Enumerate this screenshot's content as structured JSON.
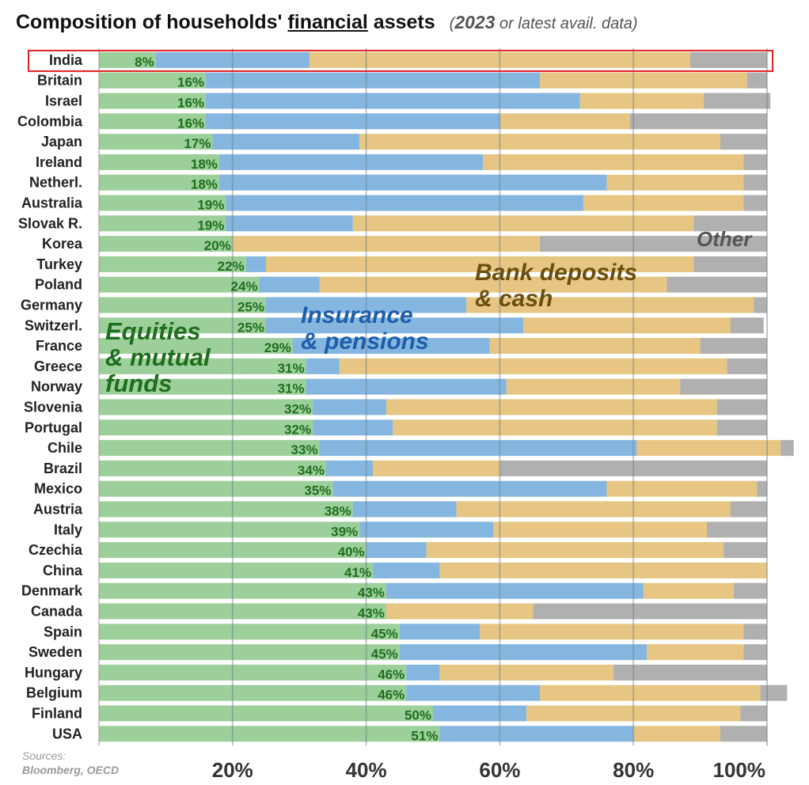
{
  "title": {
    "main_pre": "Composition of households' ",
    "main_underlined": "financial",
    "main_post": " assets",
    "note_open": "(",
    "note_year": "2023",
    "note_rest": " or latest avail. data)"
  },
  "sources": {
    "line1": "Sources:",
    "line2": "Bloomberg, OECD"
  },
  "category_labels": {
    "equities_line1": "Equities",
    "equities_line2": "& mutual",
    "equities_line3": "funds",
    "insurance_line1": "Insurance",
    "insurance_line2": "& pensions",
    "bank_line1": "Bank deposits",
    "bank_line2": "& cash",
    "other": "Other"
  },
  "chart_data": {
    "type": "bar",
    "orientation": "horizontal",
    "stacked": true,
    "xlim": [
      0,
      100
    ],
    "xticks": [
      "20%",
      "40%",
      "60%",
      "80%",
      "100%"
    ],
    "xtick_values": [
      20,
      40,
      60,
      80,
      100
    ],
    "highlighted_category": "India",
    "colors": {
      "equities": "#9dcf9a",
      "insurance": "#85b6e0",
      "bank": "#e6c682",
      "other": "#b0b0b0",
      "label_text": "#1e6e1e",
      "highlight_box": "#e02020"
    },
    "categories": [
      "India",
      "Britain",
      "Israel",
      "Colombia",
      "Japan",
      "Ireland",
      "Netherl.",
      "Australia",
      "Slovak R.",
      "Korea",
      "Turkey",
      "Poland",
      "Germany",
      "Switzerl.",
      "France",
      "Greece",
      "Norway",
      "Slovenia",
      "Portugal",
      "Chile",
      "Brazil",
      "Mexico",
      "Austria",
      "Italy",
      "Czechia",
      "China",
      "Denmark",
      "Canada",
      "Spain",
      "Sweden",
      "Hungary",
      "Belgium",
      "Finland",
      "USA"
    ],
    "value_labels": [
      "8%",
      "16%",
      "16%",
      "16%",
      "17%",
      "18%",
      "18%",
      "19%",
      "19%",
      "20%",
      "22%",
      "24%",
      "25%",
      "25%",
      "29%",
      "31%",
      "31%",
      "32%",
      "32%",
      "33%",
      "34%",
      "35%",
      "38%",
      "39%",
      "40%",
      "41%",
      "43%",
      "43%",
      "45%",
      "45%",
      "46%",
      "46%",
      "50%",
      "51%"
    ],
    "series": [
      {
        "name": "Equities & mutual funds",
        "key": "equities",
        "values": [
          8.5,
          16,
          16,
          16,
          17,
          18,
          18,
          19,
          19,
          20,
          22,
          24,
          25,
          25,
          29,
          31,
          31,
          32,
          32,
          33,
          34,
          35,
          38,
          39,
          40,
          41,
          43,
          43,
          45,
          45,
          46,
          46,
          50,
          51
        ]
      },
      {
        "name": "Insurance & pensions",
        "key": "insurance",
        "values": [
          23,
          50,
          56,
          44,
          22,
          39.5,
          58,
          53.5,
          19,
          0,
          3,
          9,
          30,
          38.5,
          29.5,
          5,
          30,
          11,
          12,
          47.5,
          7,
          41,
          15.5,
          20,
          9,
          10,
          38.5,
          0,
          12,
          37,
          5,
          20,
          14,
          29
        ]
      },
      {
        "name": "Bank deposits & cash",
        "key": "bank",
        "values": [
          57,
          31,
          18.5,
          19.5,
          54,
          39,
          20.5,
          24,
          51,
          46,
          64,
          52,
          43,
          31,
          31.5,
          58,
          26,
          49.5,
          48.5,
          21.5,
          19,
          22.5,
          41,
          32,
          44.5,
          49,
          13.5,
          22,
          39.5,
          14.5,
          26,
          33,
          32,
          13
        ]
      },
      {
        "name": "Other",
        "key": "other",
        "values": [
          11.5,
          3,
          10,
          20.5,
          7,
          3.5,
          3.5,
          3.5,
          11,
          34,
          11,
          15,
          2,
          5,
          10,
          6,
          13,
          7.5,
          7.5,
          2,
          40,
          1.5,
          5.5,
          9,
          6.5,
          0,
          5,
          35,
          3.5,
          3.5,
          23,
          4,
          4,
          7
        ]
      }
    ]
  }
}
